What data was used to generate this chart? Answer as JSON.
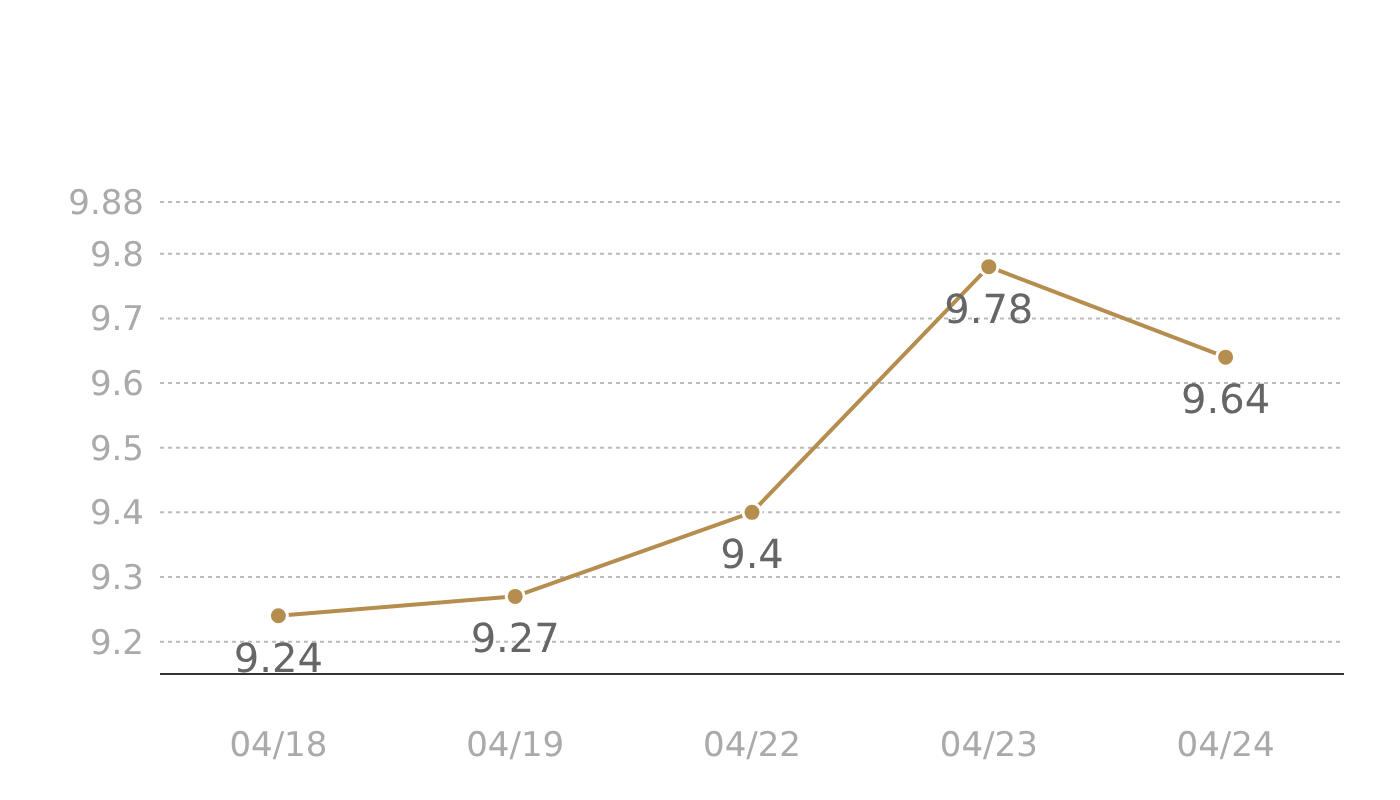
{
  "chart_data": {
    "type": "line",
    "categories": [
      "04/18",
      "04/19",
      "04/22",
      "04/23",
      "04/24"
    ],
    "series": [
      {
        "color": "#b58d4e",
        "values": [
          9.24,
          9.27,
          9.4,
          9.78,
          9.64
        ]
      }
    ],
    "ylim": [
      9.15,
      9.88
    ],
    "yticks": [
      9.2,
      9.3,
      9.4,
      9.5,
      9.6,
      9.7,
      9.8,
      9.88
    ],
    "grid": "y",
    "marker": "circle",
    "data_labels": true
  }
}
